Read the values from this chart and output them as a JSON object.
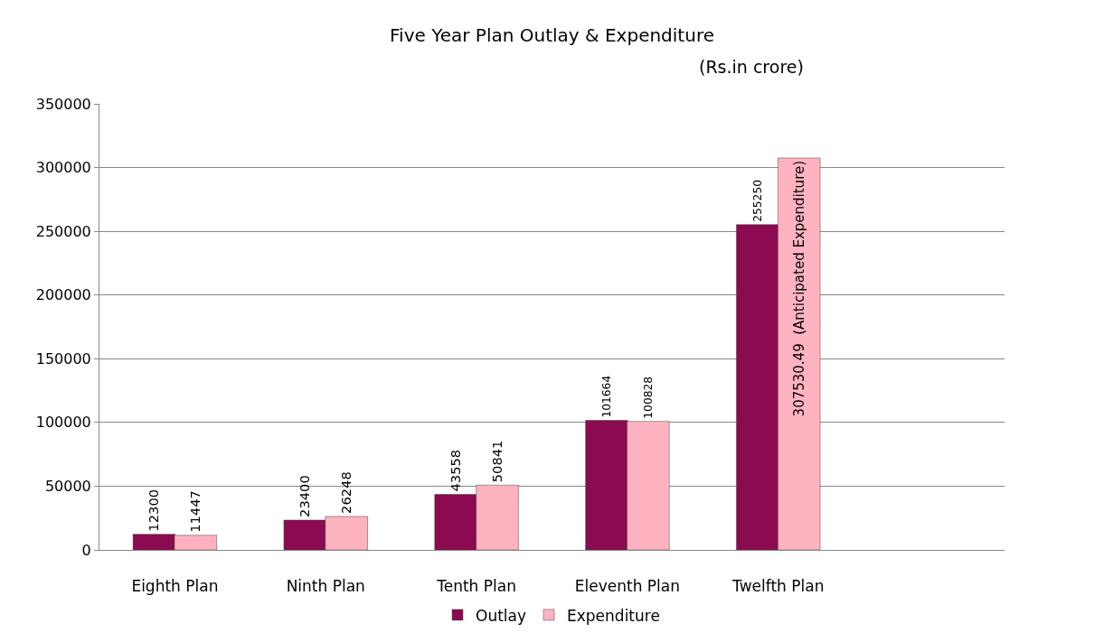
{
  "chart_data": {
    "type": "bar",
    "title": "Five Year Plan Outlay & Expenditure",
    "subtitle": "(Rs.in crore)",
    "categories": [
      "Eighth Plan",
      "Ninth Plan",
      "Tenth Plan",
      "Eleventh Plan",
      "Twelfth Plan",
      null
    ],
    "series": [
      {
        "name": "Outlay",
        "color": "#8b0a50",
        "values": [
          12300,
          23400,
          43558,
          101664,
          255250,
          null
        ],
        "value_labels": [
          "12300",
          "23400",
          "43558",
          "101664",
          "255250",
          null
        ]
      },
      {
        "name": "Expenditure",
        "color": "#ffb3c1",
        "values": [
          11447,
          26248,
          50841,
          100828,
          307530.49,
          null
        ],
        "value_labels": [
          "11447",
          "26248",
          "50841",
          "100828",
          "307530.49  (Anticipated Expenditure)",
          null
        ]
      }
    ],
    "ylim": [
      0,
      350000
    ],
    "yticks": [
      0,
      50000,
      100000,
      150000,
      200000,
      250000,
      300000,
      350000
    ],
    "grid": "y",
    "legend": "bottom"
  }
}
